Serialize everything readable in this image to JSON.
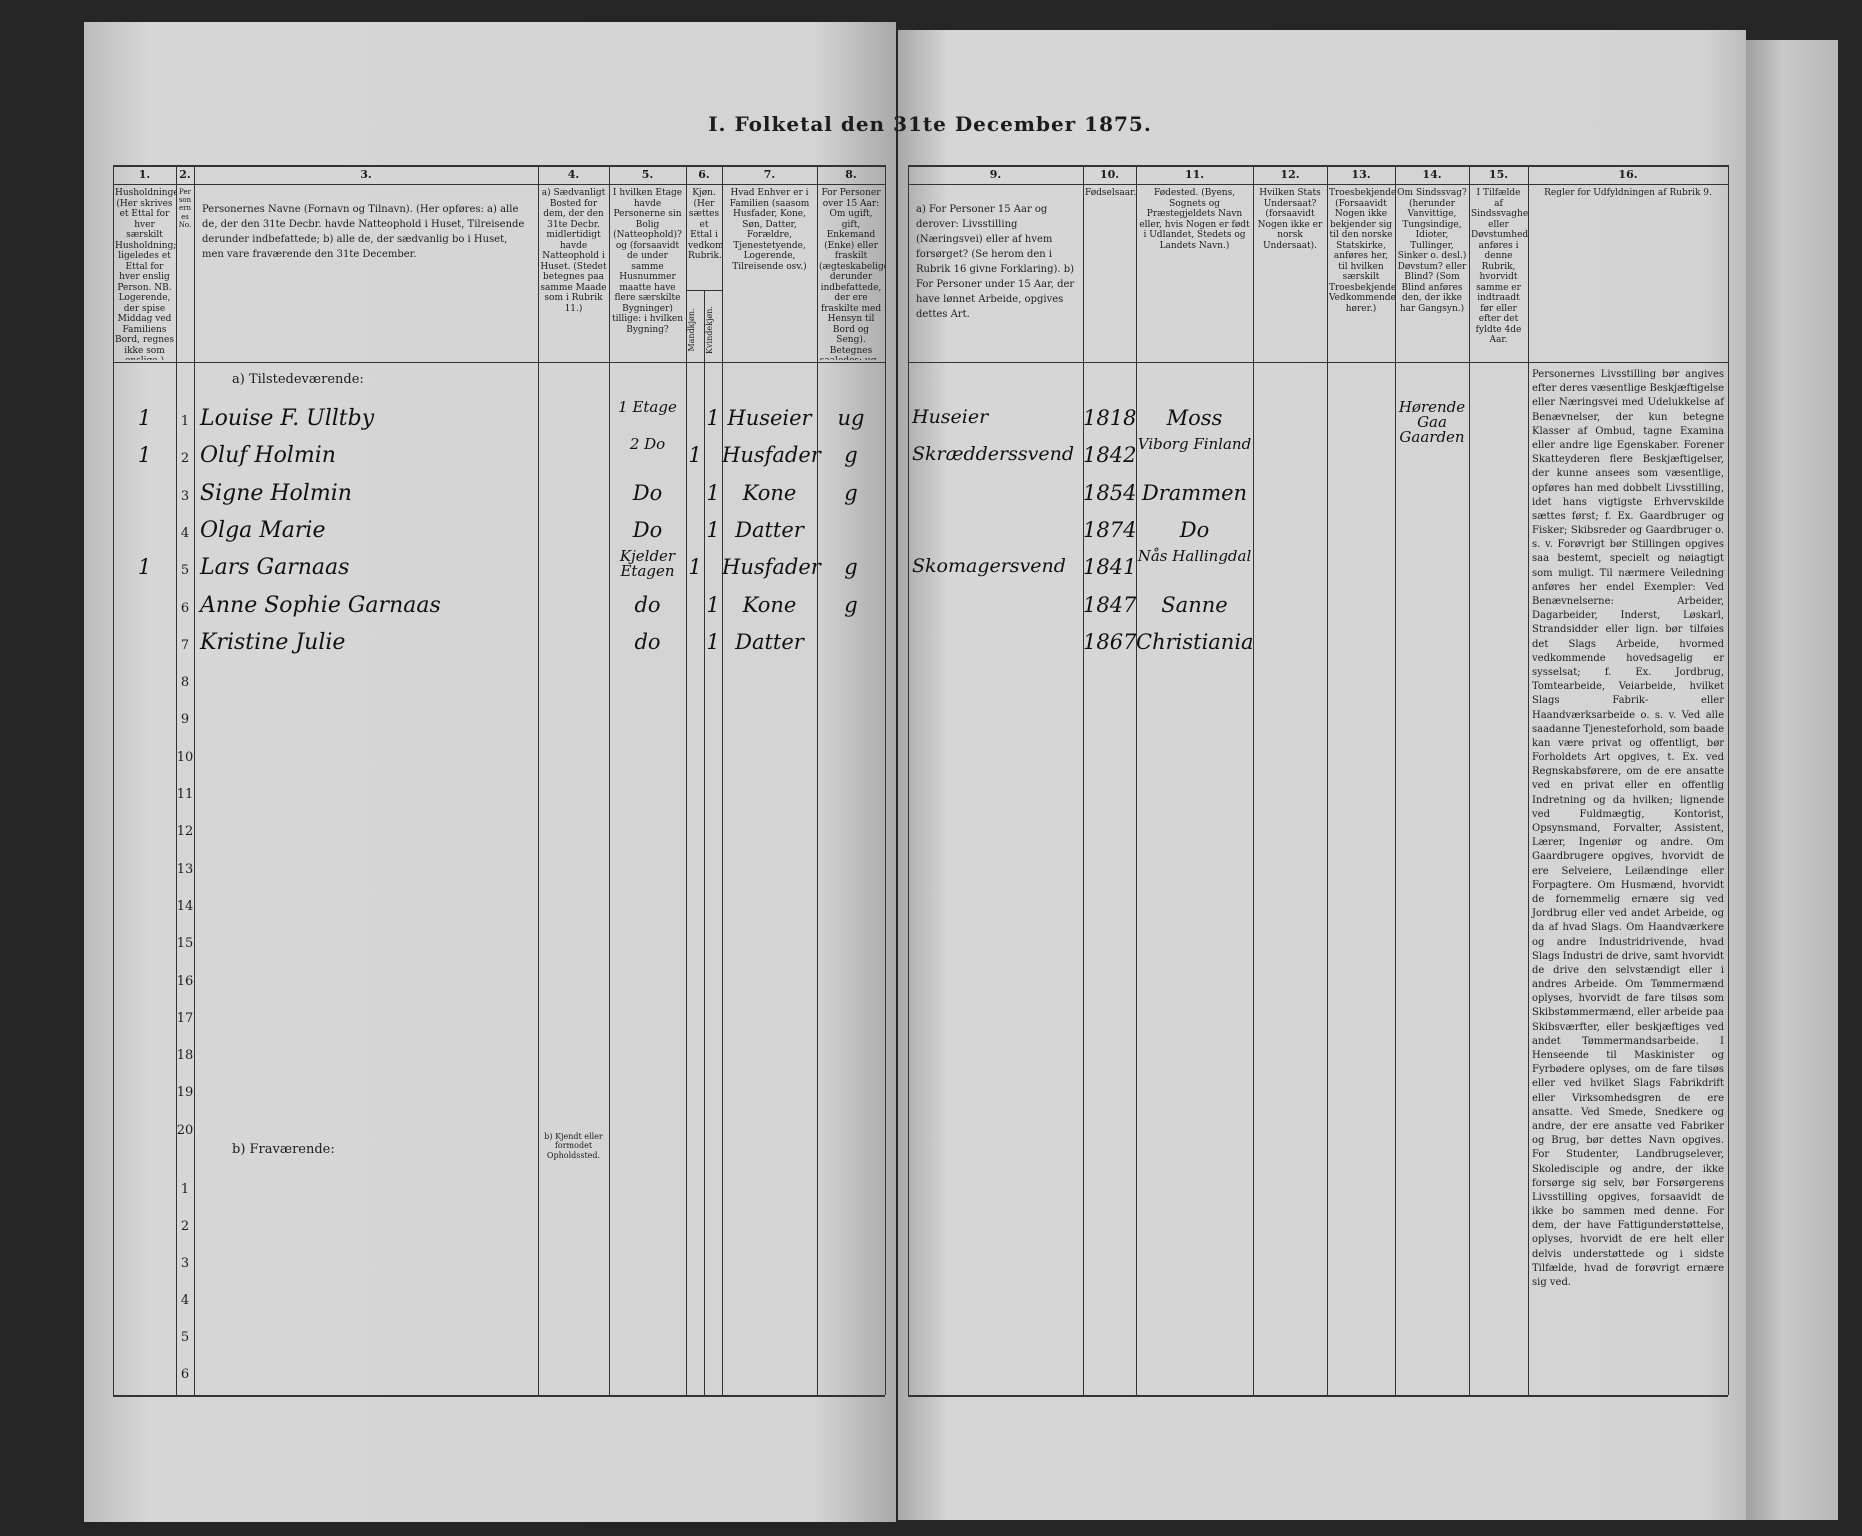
{
  "title": "I. Folketal den 31te December 1875.",
  "columns": [
    {
      "number": "1.",
      "header": "Husholdninger. (Her skrives et Ettal for hver særskilt Husholdning; ligeledes et Ettal for hver enslig Person. NB. Logerende, der spise Middag ved Familiens Bord, regnes ikke som enslige.)"
    },
    {
      "number": "2.",
      "header": "Personernes No."
    },
    {
      "number": "3.",
      "header": "Personernes Navne (Fornavn og Tilnavn). (Her opføres: a) alle de, der den 31te Decbr. havde Natteophold i Huset, Tilreisende derunder indbefattede; b) alle de, der sædvanlig bo i Huset, men vare fraværende den 31te December."
    },
    {
      "number": "4.",
      "header": "a) Sædvanligt Bosted for dem, der den 31te Decbr. midlertidigt havde Natteophold i Huset. (Stedet betegnes paa samme Maade som i Rubrik 11.)"
    },
    {
      "number": "5.",
      "header": "I hvilken Etage havde Personerne sin Bolig (Natteophold)? og (forsaavidt de under samme Husnummer maatte have flere særskilte Bygninger) tillige: i hvilken Bygning?"
    },
    {
      "number": "6.",
      "header": "Kjøn. (Her sættes et Ettal i vedkommende Rubrik.)",
      "sub": [
        "Mandkjøn.",
        "Kvindekjøn."
      ]
    },
    {
      "number": "7.",
      "header": "Hvad Enhver er i Familien (saasom Husfader, Kone, Søn, Datter, Forældre, Tjenestetyende, Logerende, Tilreisende osv.)"
    },
    {
      "number": "8.",
      "header": "For Personer over 15 Aar: Om ugift, gift, Enkemand (Enke) eller fraskilt (ægteskabelige derunder indbefattede, der ere fraskilte med Hensyn til Bord og Seng). Betegnes saaledes: ug., g., e., f."
    },
    {
      "number": "9.",
      "header": "a) For Personer 15 Aar og derover: Livsstilling (Næringsvei) eller af hvem forsørget? (Se herom den i Rubrik 16 givne Forklaring). b) For Personer under 15 Aar, der have lønnet Arbeide, opgives dettes Art."
    },
    {
      "number": "10.",
      "header": "Fødselsaar."
    },
    {
      "number": "11.",
      "header": "Fødested. (Byens, Sognets og Præstegjeldets Navn eller, hvis Nogen er født i Udlandet, Stedets og Landets Navn.)"
    },
    {
      "number": "12.",
      "header": "Hvilken Stats Undersaat? (forsaavidt Nogen ikke er norsk Undersaat)."
    },
    {
      "number": "13.",
      "header": "Troesbekjendelse. (Forsaavidt Nogen ikke bekjender sig til den norske Statskirke, anføres her, til hvilken særskilt Troesbekjendelse Vedkommende hører.)"
    },
    {
      "number": "14.",
      "header": "Om Sindssvag? (herunder Vanvittige, Tungsindige, Idioter, Tullinger, Sinker o. desl.) Døvstum? eller Blind? (Som Blind anføres den, der ikke har Gangsyn.)"
    },
    {
      "number": "15.",
      "header": "I Tilfælde af Sindssvaghed eller Døvstumhed anføres i denne Rubrik, hvorvidt samme er indtraadt før eller efter det fyldte 4de Aar."
    },
    {
      "number": "16.",
      "header": "Regler for Udfyldningen af Rubrik 9."
    }
  ],
  "rubrik16_text": "Personernes Livsstilling bør angives efter deres væsentlige Beskjæftigelse eller Næringsvei med Udelukkelse af Benævnelser, der kun betegne Klasser af Ombud, tagne Examina eller andre lige Egenskaber. Forener Skatteyderen flere Beskjæftigelser, der kunne ansees som væsentlige, opføres han med dobbelt Livsstilling, idet hans vigtigste Erhvervskilde sættes først; f. Ex. Gaardbruger og Fisker; Skibsreder og Gaardbruger o. s. v. Forøvrigt bør Stillingen opgives saa bestemt, specielt og nøiagtigt som muligt. Til nærmere Veiledning anføres her endel Exempler: Ved Benævnelserne: Arbeider, Dagarbeider, Inderst, Løskarl, Strandsidder eller lign. bør tilføies det Slags Arbeide, hvormed vedkommende hovedsagelig er sysselsat; f. Ex. Jordbrug, Tomtearbeide, Veiarbeide, hvilket Slags Fabrik- eller Haandværksarbeide o. s. v. Ved alle saadanne Tjenesteforhold, som baade kan være privat og offentligt, bør Forholdets Art opgives, t. Ex. ved Regnskabsførere, om de ere ansatte ved en privat eller en offentlig Indretning og da hvilken; lignende ved Fuldmægtig, Kontorist, Opsynsmand, Forvalter, Assistent, Lærer, Ingeniør og andre. Om Gaardbrugere opgives, hvorvidt de ere Selveiere, Leilændinge eller Forpagtere. Om Husmænd, hvorvidt de fornemmelig ernære sig ved Jordbrug eller ved andet Arbeide, og da af hvad Slags. Om Haandværkere og andre Industridrivende, hvad Slags Industri de drive, samt hvorvidt de drive den selvstændigt eller i andres Arbeide. Om Tømmermænd oplyses, hvorvidt de fare tilsøs som Skibstømmermænd, eller arbeide paa Skibsværfter, eller beskjæftiges ved andet Tømmermandsarbeide. I Henseende til Maskinister og Fyrbødere oplyses, om de fare tilsøs eller ved hvilket Slags Fabrikdrift eller Virksomhedsgren de ere ansatte. Ved Smede, Snedkere og andre, der ere ansatte ved Fabriker og Brug, bør dettes Navn opgives. For Studenter, Landbrugselever, Skoledisciple og andre, der ikke forsørge sig selv, bør Forsørgerens Livsstilling opgives, forsaavidt de ikke bo sammen med denne. For dem, der have Fattigunderstøttelse, oplyses, hvorvidt de ere helt eller delvis understøttede og i sidste Tilfælde, hvad de forøvrigt ernære sig ved.",
  "absent_col4": "b) Kjendt eller formodet Opholdssted.",
  "sections": [
    "a) Tilstedeværende:",
    "b) Fraværende:"
  ],
  "present_row_numbers": [
    "1",
    "2",
    "3",
    "4",
    "5",
    "6",
    "7",
    "8",
    "9",
    "10",
    "11",
    "12",
    "13",
    "14",
    "15",
    "16",
    "17",
    "18",
    "19",
    "20"
  ],
  "absent_row_numbers": [
    "1",
    "2",
    "3",
    "4",
    "5",
    "6"
  ],
  "entries": [
    {
      "household": "1",
      "name": "Louise F. Ulltby",
      "floor": "1 Etage",
      "female": "1",
      "family": "Huseier",
      "civil": "ug",
      "occupation": "Huseier",
      "born": "1818",
      "birthplace": "Moss",
      "note": "Hørende Gaa Gaarden"
    },
    {
      "household": "1",
      "name": "Oluf Holmin",
      "floor": "2 Do",
      "male": "1",
      "family": "Husfader",
      "civil": "g",
      "occupation": "Skrædderssvend",
      "born": "1842",
      "birthplace": "Viborg Finland"
    },
    {
      "name": "Signe Holmin",
      "floor": "Do",
      "female": "1",
      "family": "Kone",
      "civil": "g",
      "born": "1854",
      "birthplace": "Drammen"
    },
    {
      "name": "Olga Marie",
      "floor": "Do",
      "female": "1",
      "family": "Datter",
      "born": "1874",
      "birthplace": "Do"
    },
    {
      "household": "1",
      "name": "Lars Garnaas",
      "floor": "Kjelder Etagen",
      "male": "1",
      "family": "Husfader",
      "civil": "g",
      "occupation": "Skomagersvend",
      "born": "1841",
      "birthplace": "Nås Hallingdal"
    },
    {
      "name": "Anne Sophie Garnaas",
      "floor": "do",
      "female": "1",
      "family": "Kone",
      "civil": "g",
      "born": "1847",
      "birthplace": "Sanne"
    },
    {
      "name": "Kristine Julie",
      "floor": "do",
      "female": "1",
      "family": "Datter",
      "born": "1867",
      "birthplace": "Christiania"
    }
  ]
}
